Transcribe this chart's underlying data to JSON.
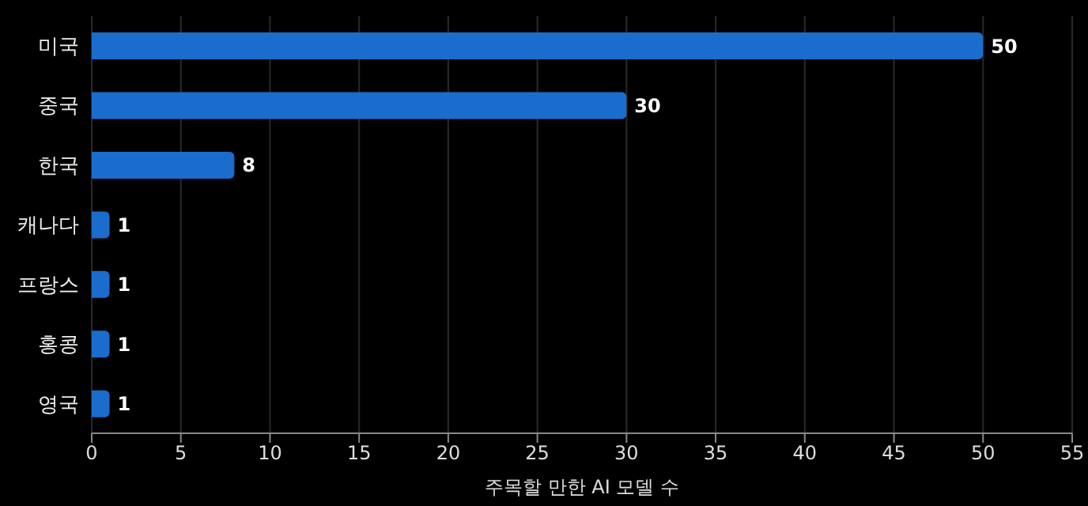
{
  "chart_data": {
    "type": "bar",
    "orientation": "horizontal",
    "categories": [
      "미국",
      "중국",
      "한국",
      "캐나다",
      "프랑스",
      "홍콩",
      "영국"
    ],
    "values": [
      50,
      30,
      8,
      1,
      1,
      1,
      1
    ],
    "color": "#1a6dcc",
    "xlabel": "주목할 만한 AI 모델 수",
    "xlim": [
      0,
      55
    ],
    "xticks": [
      0,
      5,
      10,
      15,
      20,
      25,
      30,
      35,
      40,
      45,
      50,
      55
    ],
    "grid": "x",
    "data_labels": true
  }
}
